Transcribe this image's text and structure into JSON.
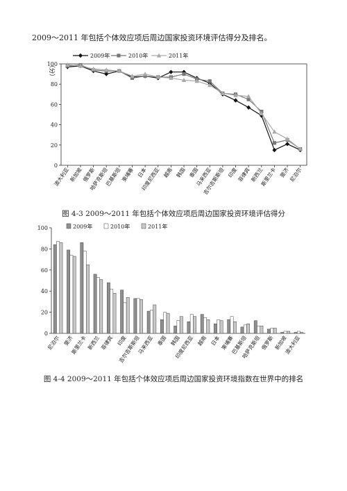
{
  "document": {
    "intro_text": "2009～2011 年包括个体效应项后周边国家投资环境评估得分及排名。",
    "figure1_caption": "图 4-3  2009～2011 年包括个体效应项后周边国家投资环境评估得分",
    "figure2_caption": "图 4-4  2009～2011 年包括个体效应项后周边国家投资环境指数在世界中的排名"
  },
  "chart_data": [
    {
      "type": "line",
      "title": "",
      "ylabel": "（分）",
      "xlabel": "",
      "ylim": [
        0,
        100
      ],
      "yticks": [
        0,
        20,
        40,
        60,
        80,
        100
      ],
      "legend_position": "top",
      "categories": [
        "澳大利亚",
        "新加坡",
        "俄罗斯",
        "哈萨克斯坦",
        "巴基斯坦",
        "柬埔寨",
        "日本",
        "印度尼西亚",
        "越南",
        "韩国",
        "泰国",
        "马来西亚",
        "吉尔吉斯斯坦",
        "印度",
        "菲律宾",
        "新西兰",
        "斯里兰卡",
        "斐济",
        "尼泊尔"
      ],
      "series": [
        {
          "name": "2009年",
          "color": "#111111",
          "marker": "diamond",
          "values": [
            97,
            98,
            93,
            90,
            93,
            87,
            88,
            86,
            92,
            92,
            86,
            81,
            70,
            64,
            57,
            49,
            15,
            21,
            15
          ]
        },
        {
          "name": "2010年",
          "color": "#777777",
          "marker": "square",
          "values": [
            98,
            99,
            94,
            93,
            93,
            86,
            88,
            87,
            87,
            90,
            85,
            83,
            71,
            70,
            65,
            53,
            22,
            25,
            16
          ]
        },
        {
          "name": "2011年",
          "color": "#aaaaaa",
          "marker": "triangle",
          "values": [
            99,
            98,
            95,
            94,
            93,
            88,
            90,
            87,
            86,
            84,
            83,
            79,
            71,
            69,
            68,
            51,
            33,
            26,
            16
          ]
        }
      ]
    },
    {
      "type": "bar",
      "title": "",
      "ylabel": "",
      "xlabel": "",
      "ylim": [
        0,
        100
      ],
      "yticks": [
        0,
        20,
        40,
        60,
        80,
        100
      ],
      "legend_position": "top",
      "categories": [
        "尼泊尔",
        "斐济",
        "斯里兰卡",
        "新西兰",
        "菲律宾",
        "印度",
        "吉尔吉斯斯坦",
        "马来西亚",
        "泰国",
        "韩国",
        "印度尼西亚",
        "越南",
        "日本",
        "柬埔寨",
        "巴基斯坦",
        "哈萨克斯坦",
        "俄罗斯",
        "新加坡",
        "澳大利亚"
      ],
      "series": [
        {
          "name": "2009年",
          "color": "#8f8f8f",
          "values": [
            84,
            79,
            86,
            56,
            48,
            41,
            33,
            21,
            13,
            7,
            11,
            18,
            9,
            13,
            6,
            12,
            4,
            1,
            1
          ]
        },
        {
          "name": "2010年",
          "color": "#ffffff",
          "values": [
            87,
            74,
            78,
            53,
            42,
            29,
            33,
            22,
            20,
            12,
            18,
            15,
            13,
            16,
            8,
            7,
            5,
            2,
            2
          ]
        },
        {
          "name": "2011年",
          "color": "#c8c8c8",
          "values": [
            86,
            73,
            65,
            51,
            38,
            34,
            32,
            27,
            19,
            16,
            16,
            13,
            12,
            11,
            9,
            7,
            5,
            2,
            1
          ]
        }
      ]
    }
  ]
}
